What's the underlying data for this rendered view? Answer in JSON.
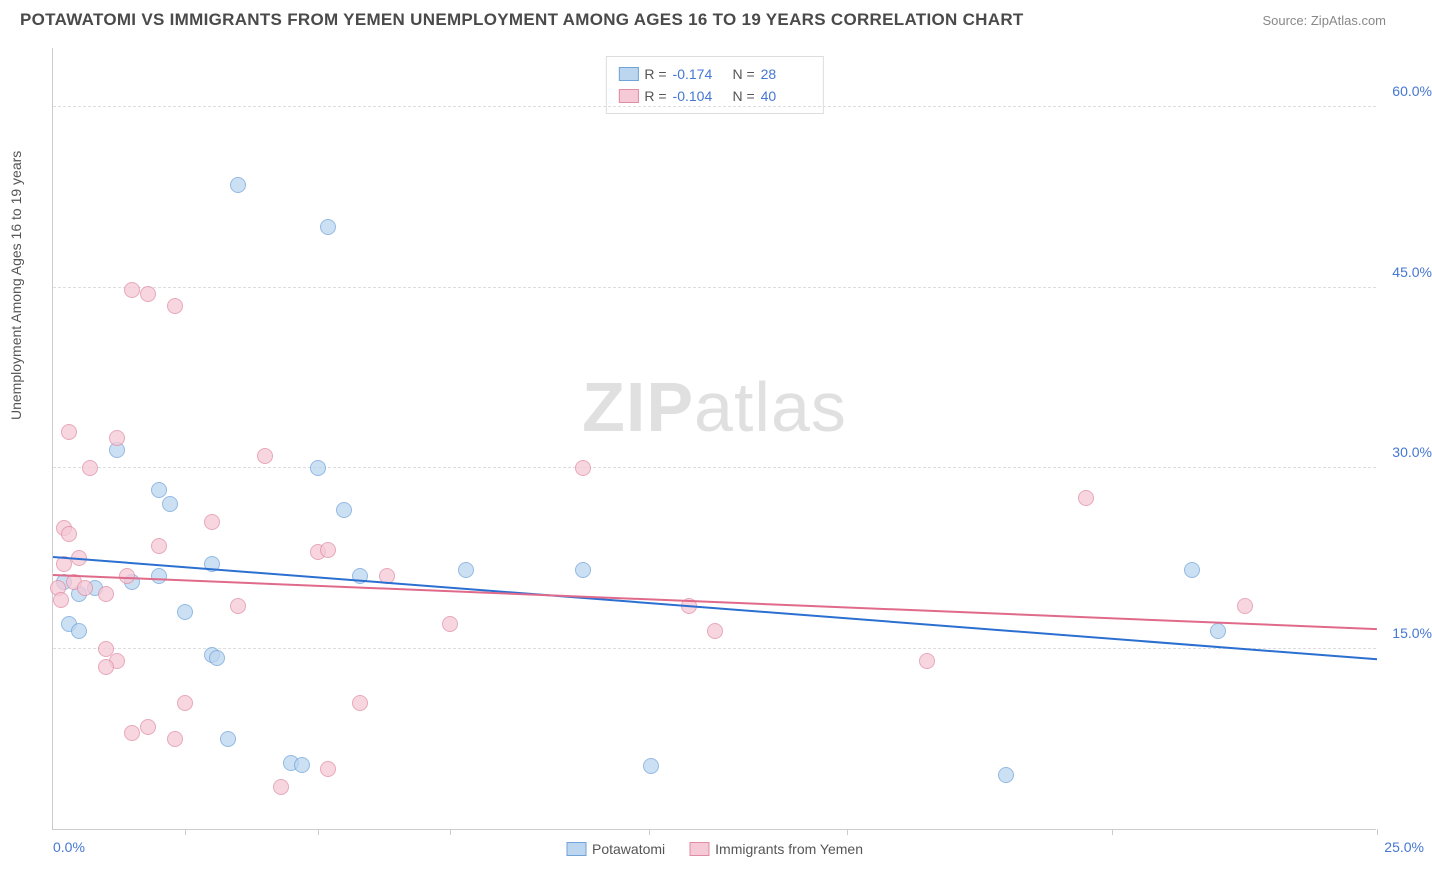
{
  "title": "POTAWATOMI VS IMMIGRANTS FROM YEMEN UNEMPLOYMENT AMONG AGES 16 TO 19 YEARS CORRELATION CHART",
  "source": "Source: ZipAtlas.com",
  "watermark_bold": "ZIP",
  "watermark_rest": "atlas",
  "chart": {
    "type": "scatter",
    "ylabel": "Unemployment Among Ages 16 to 19 years",
    "xlim": [
      0,
      25
    ],
    "ylim": [
      0,
      65
    ],
    "yticks": [
      15,
      30,
      45,
      60
    ],
    "ytick_labels": [
      "15.0%",
      "30.0%",
      "45.0%",
      "60.0%"
    ],
    "xtick_marks": [
      2.5,
      5,
      7.5,
      11.25,
      15,
      20,
      25
    ],
    "x_zero_label": "0.0%",
    "x_max_label": "25.0%",
    "background_color": "#ffffff",
    "grid_color": "#dddddd",
    "marker_radius": 8,
    "series": [
      {
        "name": "Potawatomi",
        "color_fill": "#bcd6ef",
        "color_stroke": "#6fa3d9",
        "line_color": "#2b6fd1",
        "R": "-0.174",
        "N": "28",
        "regression": {
          "x1": 0,
          "y1": 22.5,
          "x2": 25,
          "y2": 14.0
        },
        "points": [
          {
            "x": 3.5,
            "y": 53.5
          },
          {
            "x": 5.2,
            "y": 50.0
          },
          {
            "x": 1.2,
            "y": 31.5
          },
          {
            "x": 5.0,
            "y": 30.0
          },
          {
            "x": 2.0,
            "y": 28.2
          },
          {
            "x": 2.2,
            "y": 27.0
          },
          {
            "x": 5.5,
            "y": 26.5
          },
          {
            "x": 0.5,
            "y": 19.5
          },
          {
            "x": 0.8,
            "y": 20.0
          },
          {
            "x": 1.5,
            "y": 20.5
          },
          {
            "x": 2.0,
            "y": 21.0
          },
          {
            "x": 3.0,
            "y": 22.0
          },
          {
            "x": 5.8,
            "y": 21.0
          },
          {
            "x": 7.8,
            "y": 21.5
          },
          {
            "x": 10.0,
            "y": 21.5
          },
          {
            "x": 2.5,
            "y": 18.0
          },
          {
            "x": 0.3,
            "y": 17.0
          },
          {
            "x": 3.0,
            "y": 14.5
          },
          {
            "x": 3.1,
            "y": 14.2
          },
          {
            "x": 3.3,
            "y": 7.5
          },
          {
            "x": 4.5,
            "y": 5.5
          },
          {
            "x": 4.7,
            "y": 5.3
          },
          {
            "x": 11.3,
            "y": 5.2
          },
          {
            "x": 18.0,
            "y": 4.5
          },
          {
            "x": 21.5,
            "y": 21.5
          },
          {
            "x": 22.0,
            "y": 16.5
          },
          {
            "x": 0.2,
            "y": 20.5
          },
          {
            "x": 0.5,
            "y": 16.5
          }
        ]
      },
      {
        "name": "Immigrants from Yemen",
        "color_fill": "#f5c9d6",
        "color_stroke": "#e08ca4",
        "line_color": "#e06a8a",
        "R": "-0.104",
        "N": "40",
        "regression": {
          "x1": 0,
          "y1": 21.0,
          "x2": 25,
          "y2": 16.5
        },
        "points": [
          {
            "x": 1.5,
            "y": 44.8
          },
          {
            "x": 1.8,
            "y": 44.5
          },
          {
            "x": 2.3,
            "y": 43.5
          },
          {
            "x": 0.3,
            "y": 33.0
          },
          {
            "x": 1.2,
            "y": 32.5
          },
          {
            "x": 0.7,
            "y": 30.0
          },
          {
            "x": 4.0,
            "y": 31.0
          },
          {
            "x": 10.0,
            "y": 30.0
          },
          {
            "x": 0.2,
            "y": 25.0
          },
          {
            "x": 0.3,
            "y": 24.5
          },
          {
            "x": 3.0,
            "y": 25.5
          },
          {
            "x": 5.0,
            "y": 23.0
          },
          {
            "x": 5.2,
            "y": 23.2
          },
          {
            "x": 0.2,
            "y": 22.0
          },
          {
            "x": 0.4,
            "y": 20.5
          },
          {
            "x": 0.6,
            "y": 20.0
          },
          {
            "x": 1.0,
            "y": 19.5
          },
          {
            "x": 1.4,
            "y": 21.0
          },
          {
            "x": 6.3,
            "y": 21.0
          },
          {
            "x": 3.5,
            "y": 18.5
          },
          {
            "x": 12.0,
            "y": 18.5
          },
          {
            "x": 7.5,
            "y": 17.0
          },
          {
            "x": 12.5,
            "y": 16.5
          },
          {
            "x": 1.0,
            "y": 15.0
          },
          {
            "x": 1.2,
            "y": 14.0
          },
          {
            "x": 1.0,
            "y": 13.5
          },
          {
            "x": 2.5,
            "y": 10.5
          },
          {
            "x": 5.8,
            "y": 10.5
          },
          {
            "x": 1.5,
            "y": 8.0
          },
          {
            "x": 1.8,
            "y": 8.5
          },
          {
            "x": 2.3,
            "y": 7.5
          },
          {
            "x": 5.2,
            "y": 5.0
          },
          {
            "x": 4.3,
            "y": 3.5
          },
          {
            "x": 16.5,
            "y": 14.0
          },
          {
            "x": 19.5,
            "y": 27.5
          },
          {
            "x": 22.5,
            "y": 18.5
          },
          {
            "x": 0.1,
            "y": 20.0
          },
          {
            "x": 0.15,
            "y": 19.0
          },
          {
            "x": 0.5,
            "y": 22.5
          },
          {
            "x": 2.0,
            "y": 23.5
          }
        ]
      }
    ],
    "legend_bottom": [
      {
        "label": "Potawatomi",
        "fill": "#bcd6ef",
        "stroke": "#6fa3d9"
      },
      {
        "label": "Immigrants from Yemen",
        "fill": "#f5c9d6",
        "stroke": "#e08ca4"
      }
    ]
  }
}
